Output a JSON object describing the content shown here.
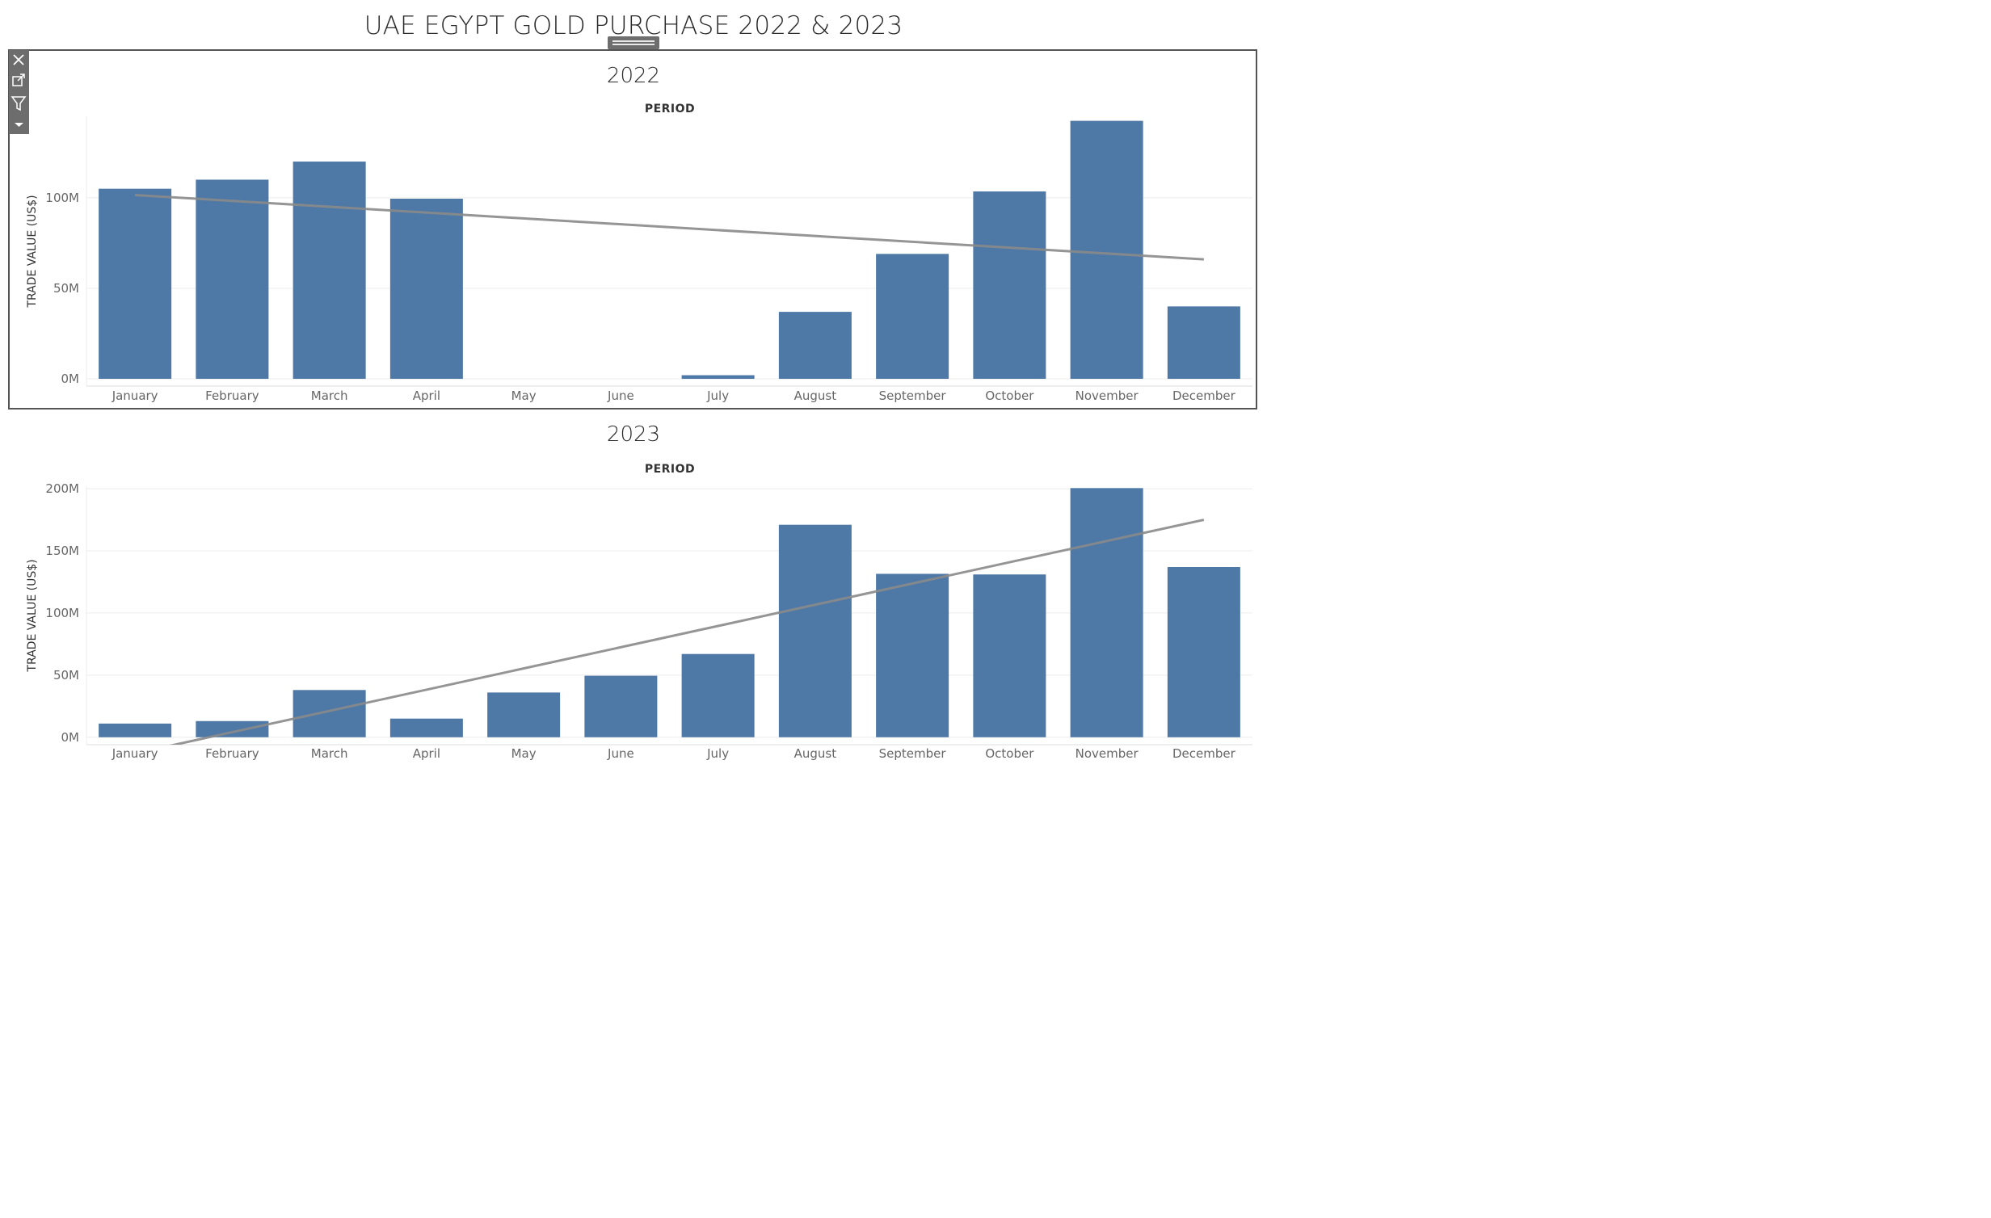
{
  "dashboard": {
    "title": "UAE EGYPT GOLD PURCHASE 2022 & 2023"
  },
  "toolbar": [
    "close-icon",
    "popout-icon",
    "filter-icon",
    "dropdown-arrow-icon"
  ],
  "colors": {
    "bar": "#4e79a7",
    "trend": "#8a8a8a",
    "grid": "#ececec",
    "axis_text": "#666666"
  },
  "chart_data": [
    {
      "type": "bar",
      "title": "2022",
      "xlabel": "PERIOD",
      "ylabel": "TRADE VALUE (US$)",
      "ylim": [
        -4,
        145
      ],
      "yticks": [
        0,
        50,
        100
      ],
      "ytick_labels": [
        "0M",
        "50M",
        "100M"
      ],
      "categories": [
        "January",
        "February",
        "March",
        "April",
        "May",
        "June",
        "July",
        "August",
        "September",
        "October",
        "November",
        "December"
      ],
      "values": [
        105,
        110,
        120,
        99.5,
        0,
        0,
        2,
        37,
        69,
        103.5,
        142.5,
        40
      ],
      "unit": "M",
      "trendline": {
        "start": 101.5,
        "end": 66
      }
    },
    {
      "type": "bar",
      "title": "2023",
      "xlabel": "PERIOD",
      "ylabel": "TRADE VALUE (US$)",
      "ylim": [
        -6,
        202
      ],
      "yticks": [
        0,
        50,
        100,
        150,
        200
      ],
      "ytick_labels": [
        "0M",
        "50M",
        "100M",
        "150M",
        "200M"
      ],
      "categories": [
        "January",
        "February",
        "March",
        "April",
        "May",
        "June",
        "July",
        "August",
        "September",
        "October",
        "November",
        "December"
      ],
      "values": [
        11,
        13,
        38,
        15,
        36,
        49.5,
        67,
        171,
        131.5,
        131,
        200.5,
        137
      ],
      "unit": "M",
      "trendline": {
        "start": -13,
        "end": 175
      }
    }
  ]
}
